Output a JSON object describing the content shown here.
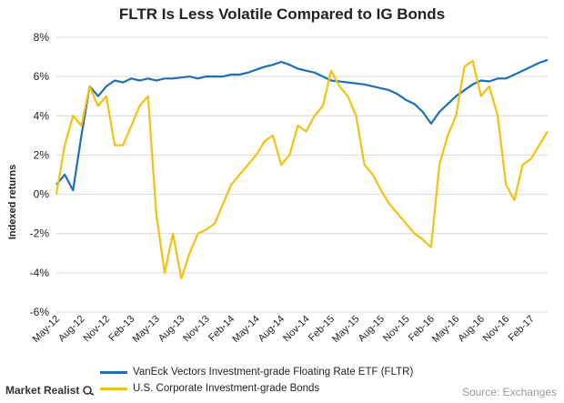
{
  "chart_data": {
    "type": "line",
    "title": "FLTR Is Less Volatile Compared to IG Bonds",
    "ylabel": "Indexed returns",
    "xlabel": "",
    "ylim": [
      -6,
      8
    ],
    "yticks": [
      "8%",
      "6%",
      "4%",
      "2%",
      "0%",
      "-2%",
      "-4%",
      "-6%"
    ],
    "ytick_values": [
      8,
      6,
      4,
      2,
      0,
      -2,
      -4,
      -6
    ],
    "xticks": [
      "May-12",
      "Aug-12",
      "Nov-12",
      "Feb-13",
      "May-13",
      "Aug-13",
      "Nov-13",
      "Feb-14",
      "May-14",
      "Aug-14",
      "Nov-14",
      "Feb-15",
      "May-15",
      "Aug-15",
      "Nov-15",
      "Feb-16",
      "May-16",
      "Aug-16",
      "Nov-16",
      "Feb-17"
    ],
    "x_start": "May-12",
    "x_end": "Apr-17",
    "grid": "horizontal",
    "legend_position": "bottom",
    "series": [
      {
        "name": "VanEck Vectors Investment-grade Floating Rate ETF (FLTR)",
        "color": "#1F6FB5",
        "x": [
          "May-12",
          "Jun-12",
          "Jul-12",
          "Aug-12",
          "Sep-12",
          "Oct-12",
          "Nov-12",
          "Dec-12",
          "Jan-13",
          "Feb-13",
          "Mar-13",
          "Apr-13",
          "May-13",
          "Jun-13",
          "Jul-13",
          "Aug-13",
          "Sep-13",
          "Oct-13",
          "Nov-13",
          "Dec-13",
          "Jan-14",
          "Feb-14",
          "Mar-14",
          "Apr-14",
          "May-14",
          "Jun-14",
          "Jul-14",
          "Aug-14",
          "Sep-14",
          "Oct-14",
          "Nov-14",
          "Dec-14",
          "Jan-15",
          "Feb-15",
          "Mar-15",
          "Apr-15",
          "May-15",
          "Jun-15",
          "Jul-15",
          "Aug-15",
          "Sep-15",
          "Oct-15",
          "Nov-15",
          "Dec-15",
          "Jan-16",
          "Feb-16",
          "Mar-16",
          "Apr-16",
          "May-16",
          "Jun-16",
          "Jul-16",
          "Aug-16",
          "Sep-16",
          "Oct-16",
          "Nov-16",
          "Dec-16",
          "Jan-17",
          "Feb-17",
          "Mar-17",
          "Apr-17"
        ],
        "values": [
          0.5,
          1.0,
          0.2,
          3.0,
          5.5,
          5.0,
          5.5,
          5.8,
          5.7,
          5.9,
          5.8,
          5.9,
          5.8,
          5.9,
          5.9,
          5.95,
          6.0,
          5.9,
          6.0,
          6.0,
          6.0,
          6.1,
          6.1,
          6.2,
          6.35,
          6.5,
          6.6,
          6.75,
          6.6,
          6.4,
          6.3,
          6.2,
          6.0,
          5.8,
          5.75,
          5.7,
          5.65,
          5.6,
          5.5,
          5.4,
          5.3,
          5.1,
          4.8,
          4.6,
          4.2,
          3.6,
          4.2,
          4.6,
          5.0,
          5.3,
          5.6,
          5.8,
          5.75,
          5.9,
          5.9,
          6.1,
          6.3,
          6.5,
          6.7,
          6.85
        ]
      },
      {
        "name": "U.S. Corporate Investment-grade Bonds",
        "color": "#F4C011",
        "x": [
          "May-12",
          "Jun-12",
          "Jul-12",
          "Aug-12",
          "Sep-12",
          "Oct-12",
          "Nov-12",
          "Dec-12",
          "Jan-13",
          "Feb-13",
          "Mar-13",
          "Apr-13",
          "May-13",
          "Jun-13",
          "Jul-13",
          "Aug-13",
          "Sep-13",
          "Oct-13",
          "Nov-13",
          "Dec-13",
          "Jan-14",
          "Feb-14",
          "Mar-14",
          "Apr-14",
          "May-14",
          "Jun-14",
          "Jul-14",
          "Aug-14",
          "Sep-14",
          "Oct-14",
          "Nov-14",
          "Dec-14",
          "Jan-15",
          "Feb-15",
          "Mar-15",
          "Apr-15",
          "May-15",
          "Jun-15",
          "Jul-15",
          "Aug-15",
          "Sep-15",
          "Oct-15",
          "Nov-15",
          "Dec-15",
          "Jan-16",
          "Feb-16",
          "Mar-16",
          "Apr-16",
          "May-16",
          "Jun-16",
          "Jul-16",
          "Aug-16",
          "Sep-16",
          "Oct-16",
          "Nov-16",
          "Dec-16",
          "Jan-17",
          "Feb-17",
          "Mar-17",
          "Apr-17"
        ],
        "values": [
          0.0,
          2.5,
          4.0,
          3.5,
          5.5,
          4.5,
          5.0,
          2.5,
          2.5,
          3.5,
          4.5,
          5.0,
          -1.0,
          -4.0,
          -2.0,
          -4.3,
          -3.0,
          -2.0,
          -1.8,
          -1.5,
          -0.5,
          0.5,
          1.0,
          1.5,
          2.0,
          2.7,
          3.0,
          1.5,
          2.0,
          3.5,
          3.2,
          4.0,
          4.5,
          6.3,
          5.5,
          5.0,
          4.0,
          1.5,
          1.0,
          0.2,
          -0.5,
          -1.0,
          -1.5,
          -2.0,
          -2.3,
          -2.7,
          1.5,
          3.0,
          4.0,
          6.5,
          6.8,
          5.0,
          5.5,
          4.0,
          0.5,
          -0.3,
          1.5,
          1.8,
          2.5,
          3.2
        ]
      }
    ]
  },
  "branding": {
    "logo_text": "Market Realist"
  },
  "source_note": "Source: Exchanges"
}
